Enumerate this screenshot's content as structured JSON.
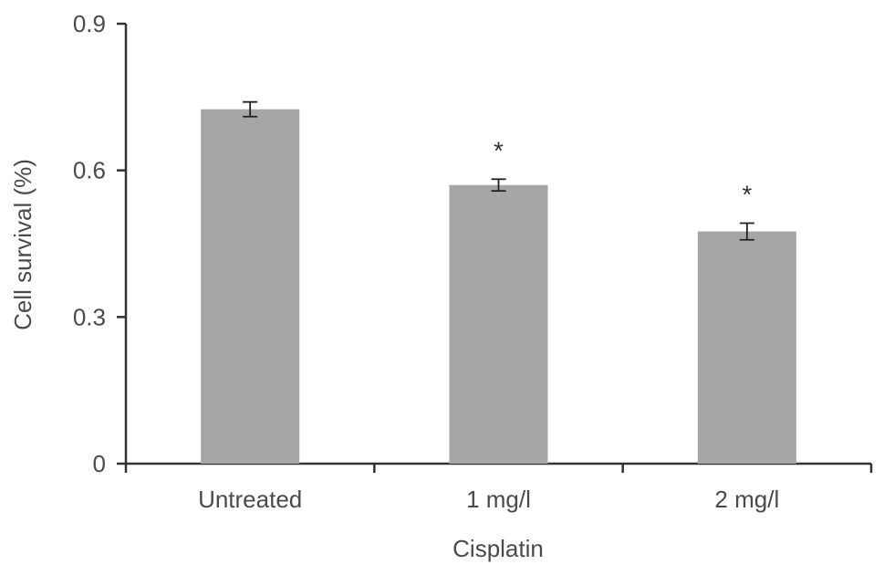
{
  "chart_data": {
    "type": "bar",
    "title": "",
    "xlabel": "Cisplatin",
    "ylabel": "Cell survival (%)",
    "ylim": [
      0,
      0.9
    ],
    "yticks": [
      "0",
      "0.3",
      "0.6",
      "0.9"
    ],
    "ytick_values": [
      0,
      0.3,
      0.6,
      0.9
    ],
    "categories": [
      "Untreated",
      "1 mg/l",
      "2 mg/l"
    ],
    "values": [
      0.725,
      0.57,
      0.475
    ],
    "errors": [
      0.015,
      0.012,
      0.017
    ],
    "annotations": [
      "",
      "*",
      "*"
    ],
    "grid": false,
    "legend": "none",
    "colors": {
      "bar": "#a6a6a6",
      "axis": "#333333",
      "text": "#4a4a4a"
    }
  }
}
